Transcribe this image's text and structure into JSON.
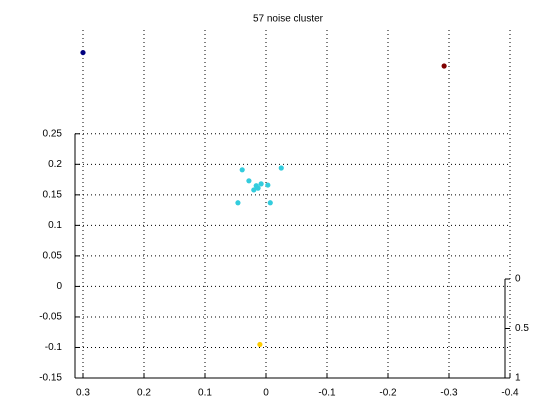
{
  "chart_data": {
    "type": "scatter",
    "title": "57 noise cluster",
    "series": [
      {
        "color": "#00007f",
        "x": [
          0.3
        ],
        "y": [
          0.383
        ]
      },
      {
        "color": "#7f0000",
        "x": [
          -0.292
        ],
        "y": [
          0.361
        ]
      },
      {
        "color": "#ffcc00",
        "x": [
          0.01
        ],
        "y": [
          -0.095
        ]
      },
      {
        "color": "#33ccdd",
        "x": [
          0.039,
          -0.025,
          0.028,
          0.016,
          0.008,
          -0.003,
          0.02,
          0.013,
          0.046,
          -0.007
        ],
        "y": [
          0.191,
          0.194,
          0.173,
          0.165,
          0.168,
          0.166,
          0.158,
          0.161,
          0.137,
          0.137
        ]
      }
    ],
    "xlim": [
      0.3,
      -0.4
    ],
    "xticks": [
      0.3,
      0.2,
      0.1,
      0,
      -0.1,
      -0.2,
      -0.3,
      -0.4
    ],
    "ylim": [
      -0.15,
      0.42
    ],
    "yticks": [
      -0.15,
      -0.1,
      -0.05,
      0,
      0.05,
      0.1,
      0.15,
      0.2,
      0.25
    ],
    "zlim": [
      0,
      1
    ],
    "zticks": [
      0,
      0.5,
      1
    ],
    "grid": true
  }
}
